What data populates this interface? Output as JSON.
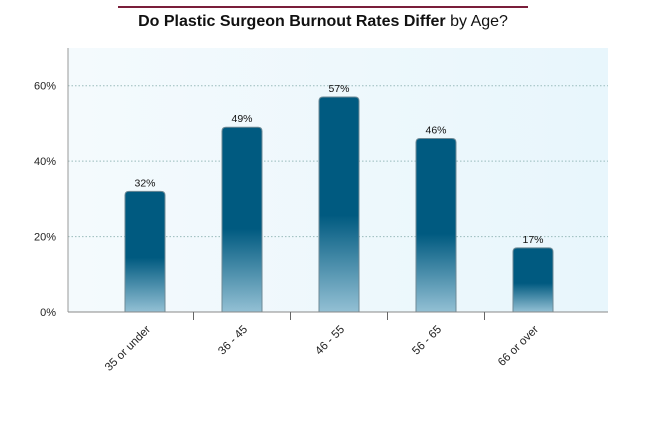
{
  "chart_data": {
    "type": "bar",
    "title_bold": "Do Plastic Surgeon Burnout Rates Differ",
    "title_light": " by Age?",
    "categories": [
      "35 or under",
      "36 - 45",
      "46 - 55",
      "56 - 65",
      "66 or over"
    ],
    "values": [
      32,
      49,
      57,
      46,
      17
    ],
    "value_labels": [
      "32%",
      "49%",
      "57%",
      "46%",
      "17%"
    ],
    "yticks": [
      0,
      20,
      40,
      60
    ],
    "ytick_labels": [
      "0%",
      "20%",
      "40%",
      "60%"
    ],
    "ylim": [
      0,
      70
    ],
    "xlabel": "",
    "ylabel": "",
    "grid": true,
    "colors": {
      "bar_dark": "#005a80",
      "bar_light": "#8fbcd1",
      "accent": "#7a1e3a",
      "plot_bg": "#eef8fd"
    }
  }
}
